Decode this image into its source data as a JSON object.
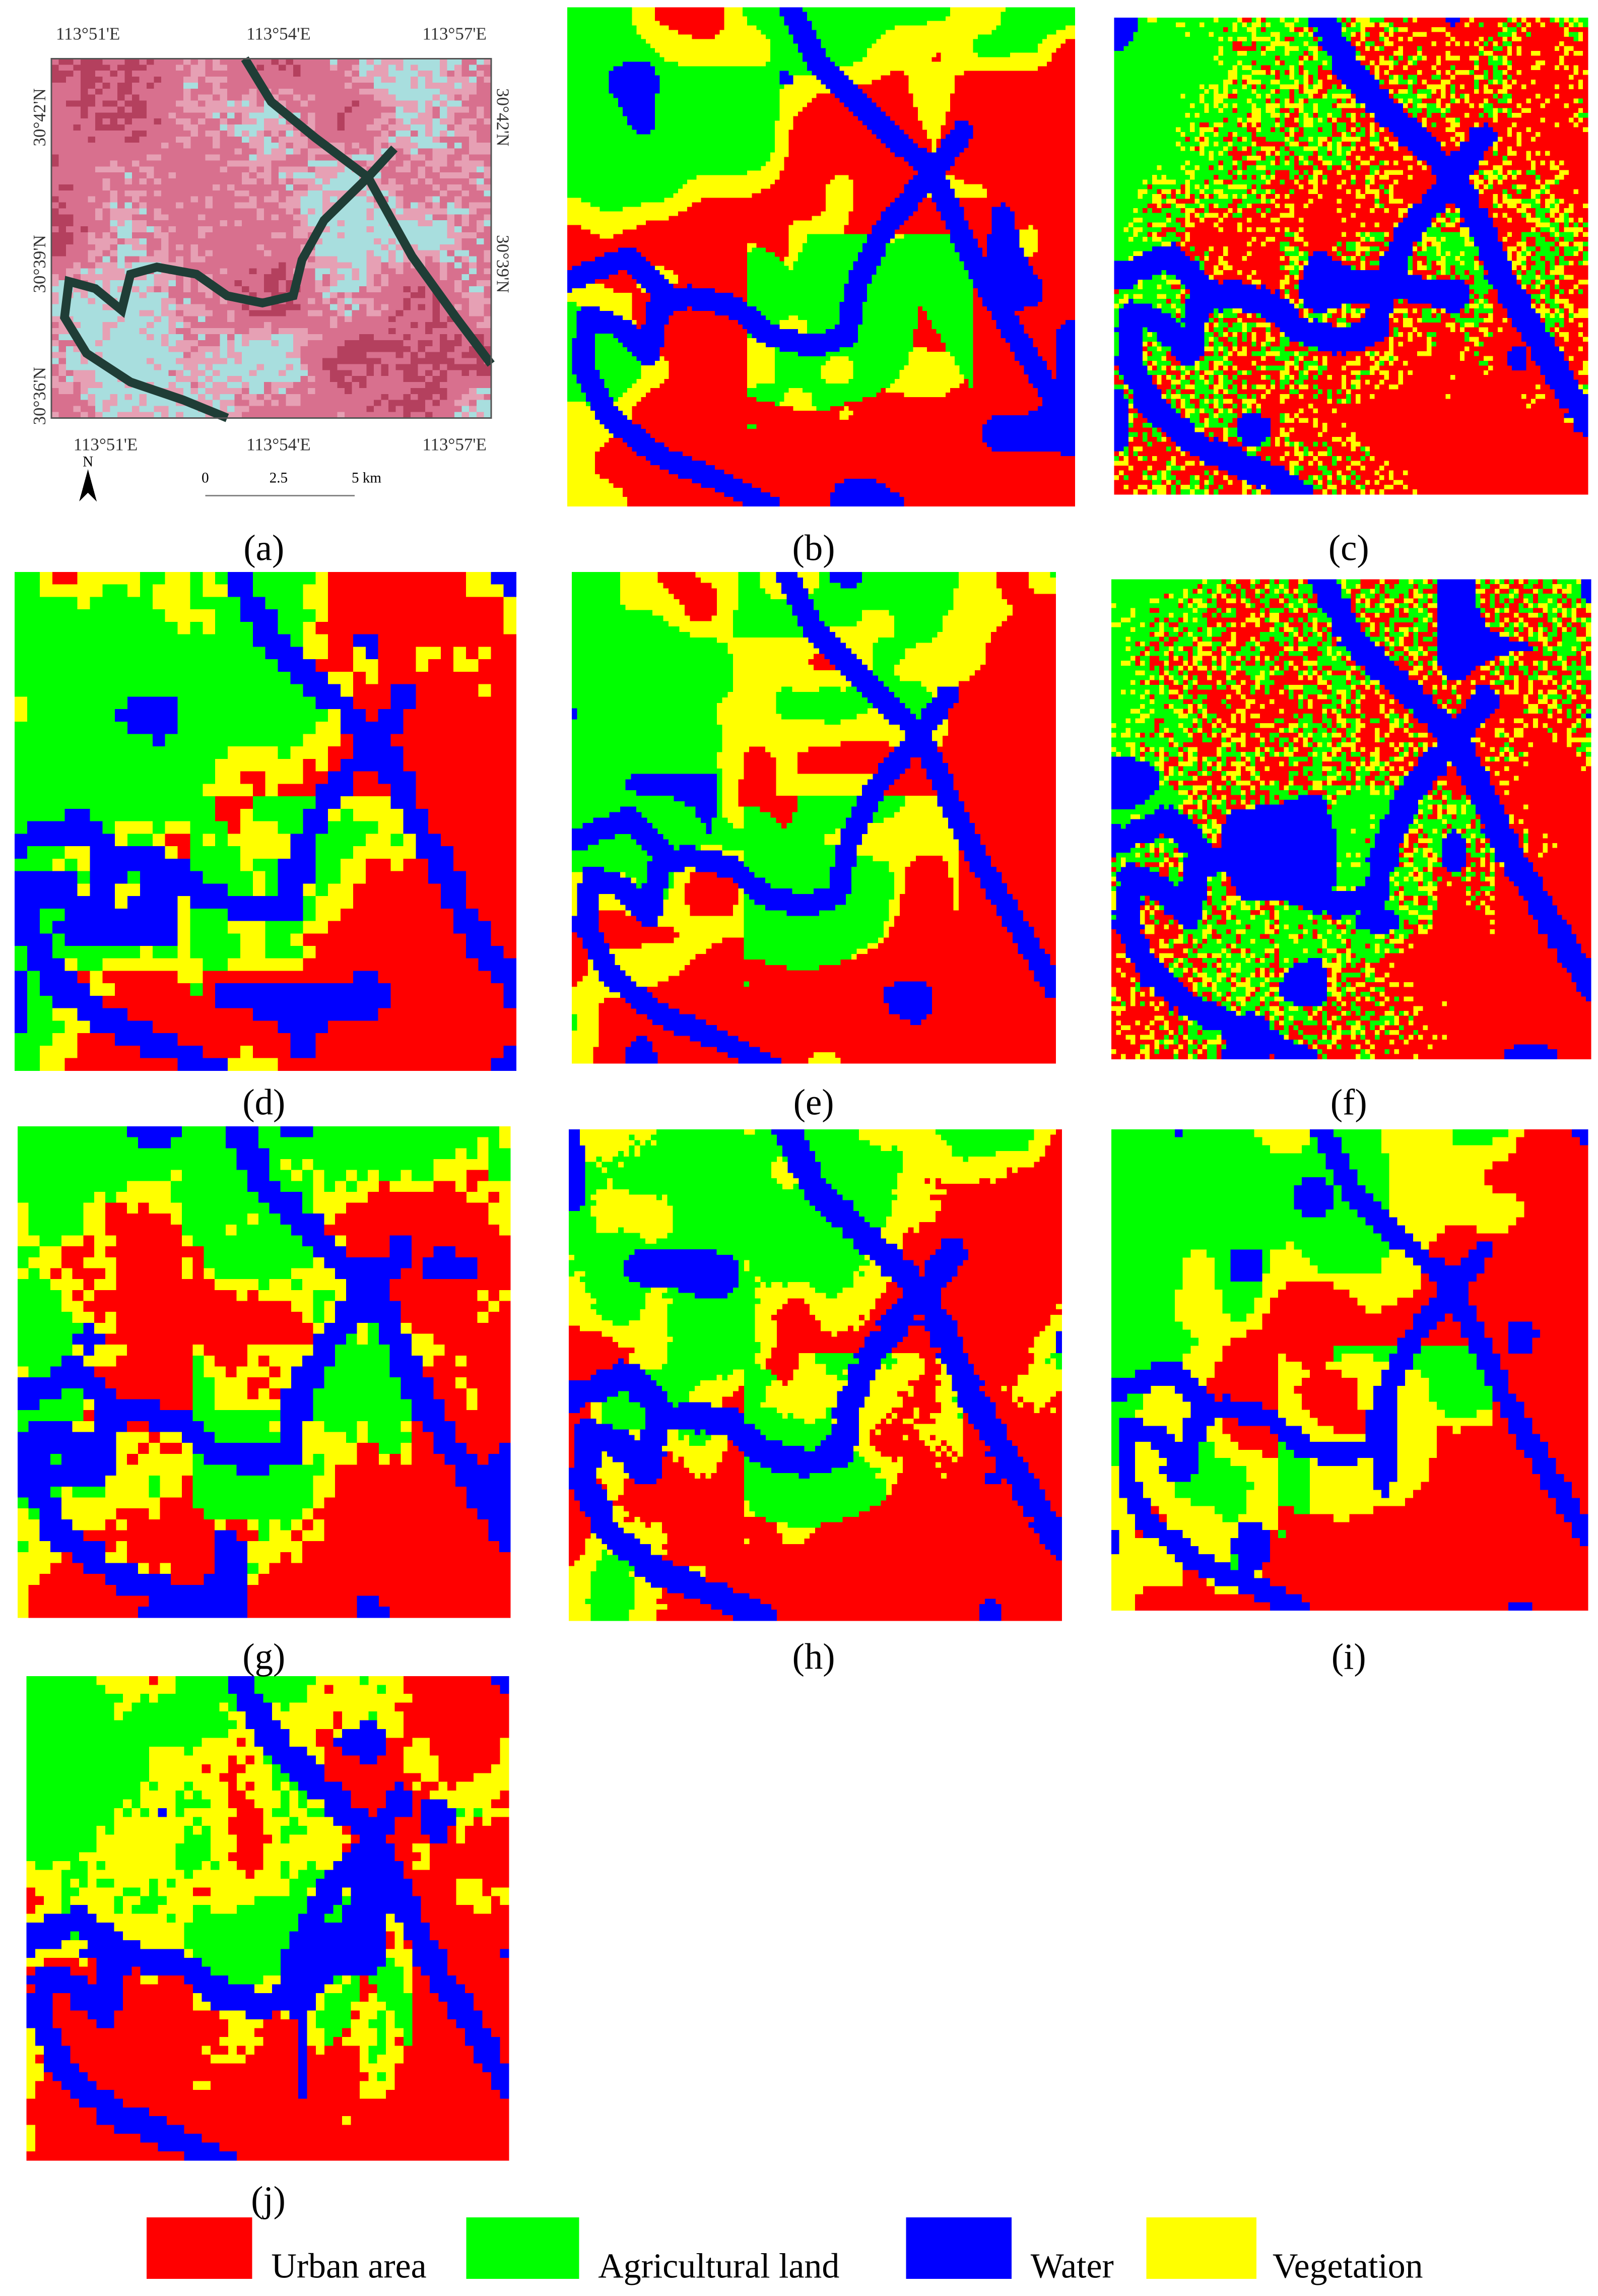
{
  "panel_a": {
    "top_lon_labels": [
      "113°51'E",
      "113°54'E",
      "113°57'E"
    ],
    "bottom_lon_labels": [
      "113°51'E",
      "113°54'E",
      "113°57'E"
    ],
    "left_lat_labels": [
      "30°42'N",
      "30°39'N",
      "30°36'N"
    ],
    "right_lat_labels": [
      "30°42'N",
      "30°39'N"
    ],
    "north": "N",
    "scale_labels": [
      "0",
      "2.5",
      "5 km"
    ]
  },
  "panel_labels": [
    "(a)",
    "(b)",
    "(c)",
    "(d)",
    "(e)",
    "(f)",
    "(g)",
    "(h)",
    "(i)",
    "(j)"
  ],
  "legend": [
    {
      "label": "Urban area",
      "color": "#ff0000"
    },
    {
      "label": "Agricultural land",
      "color": "#00ff00"
    },
    {
      "label": "Water",
      "color": "#0000ff"
    },
    {
      "label": "Vegetation",
      "color": "#ffff00"
    }
  ]
}
